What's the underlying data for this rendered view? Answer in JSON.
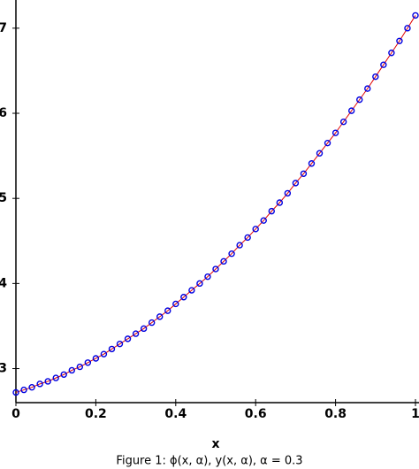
{
  "chart_data": {
    "type": "line",
    "caption": "Figure 1: ϕ(x, α), y(x, α), α = 0.3",
    "x_label": "x",
    "x": [
      0,
      0.02,
      0.04,
      0.06,
      0.08,
      0.1,
      0.12,
      0.14,
      0.16,
      0.18,
      0.2,
      0.22,
      0.24,
      0.26,
      0.28,
      0.3,
      0.32,
      0.34,
      0.36,
      0.38,
      0.4,
      0.42,
      0.44,
      0.46,
      0.48,
      0.5,
      0.52,
      0.54,
      0.56,
      0.58,
      0.6,
      0.62,
      0.64,
      0.66,
      0.68,
      0.7,
      0.72,
      0.74,
      0.76,
      0.78,
      0.8,
      0.82,
      0.84,
      0.86,
      0.88,
      0.9,
      0.92,
      0.94,
      0.96,
      0.98,
      1
    ],
    "series": [
      {
        "color": "#e00000",
        "marker": "none",
        "values": [
          2.72,
          2.75,
          2.78,
          2.82,
          2.85,
          2.89,
          2.93,
          2.98,
          3.02,
          3.07,
          3.12,
          3.17,
          3.23,
          3.29,
          3.35,
          3.41,
          3.47,
          3.54,
          3.61,
          3.68,
          3.76,
          3.84,
          3.92,
          4.0,
          4.08,
          4.17,
          4.26,
          4.35,
          4.45,
          4.54,
          4.64,
          4.74,
          4.85,
          4.95,
          5.06,
          5.18,
          5.29,
          5.41,
          5.53,
          5.65,
          5.77,
          5.9,
          6.03,
          6.16,
          6.29,
          6.43,
          6.57,
          6.71,
          6.85,
          7.0,
          7.15
        ]
      },
      {
        "color": "#0000e0",
        "marker": "circle",
        "values": [
          2.72,
          2.75,
          2.78,
          2.82,
          2.85,
          2.89,
          2.93,
          2.98,
          3.02,
          3.07,
          3.12,
          3.17,
          3.23,
          3.29,
          3.35,
          3.41,
          3.47,
          3.54,
          3.61,
          3.68,
          3.76,
          3.84,
          3.92,
          4.0,
          4.08,
          4.17,
          4.26,
          4.35,
          4.45,
          4.54,
          4.64,
          4.74,
          4.85,
          4.95,
          5.06,
          5.18,
          5.29,
          5.41,
          5.53,
          5.65,
          5.77,
          5.9,
          6.03,
          6.16,
          6.29,
          6.43,
          6.57,
          6.71,
          6.85,
          7.0,
          7.15
        ]
      }
    ],
    "xlim": [
      0,
      1
    ],
    "ylim": [
      2.6,
      7.3
    ],
    "xticks": [
      0,
      0.2,
      0.4,
      0.6,
      0.8,
      1
    ],
    "yticks": [
      3,
      4,
      5,
      6,
      7
    ]
  }
}
